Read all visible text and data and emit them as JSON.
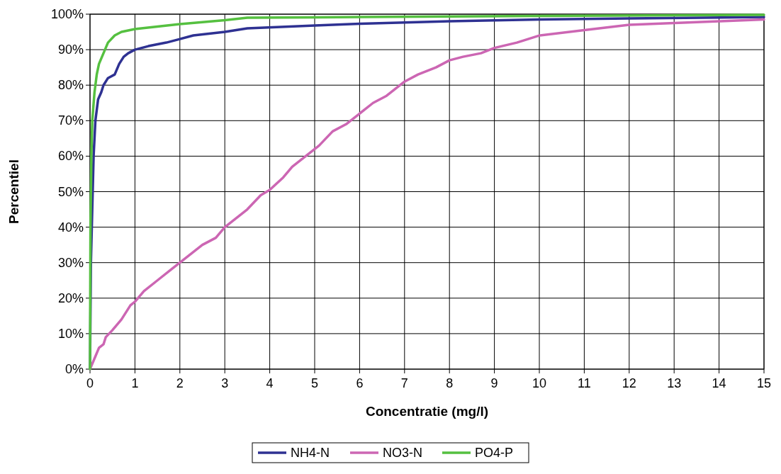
{
  "chart_data": {
    "type": "line",
    "xlabel": "Concentratie (mg/l)",
    "ylabel": "Percentiel",
    "xlim": [
      0,
      15
    ],
    "xticks": [
      0,
      1,
      2,
      3,
      4,
      5,
      6,
      7,
      8,
      9,
      10,
      11,
      12,
      13,
      14,
      15
    ],
    "ylim": [
      0,
      100
    ],
    "yticks": [
      {
        "value": 0,
        "label": "0%"
      },
      {
        "value": 10,
        "label": "10%"
      },
      {
        "value": 20,
        "label": "20%"
      },
      {
        "value": 30,
        "label": "30%"
      },
      {
        "value": 40,
        "label": "40%"
      },
      {
        "value": 50,
        "label": "50%"
      },
      {
        "value": 60,
        "label": "60%"
      },
      {
        "value": 70,
        "label": "70%"
      },
      {
        "value": 80,
        "label": "80%"
      },
      {
        "value": 90,
        "label": "90%"
      },
      {
        "value": 100,
        "label": "100%"
      }
    ],
    "grid": true,
    "legend": "bottom",
    "marker": "none",
    "line_style": "solid",
    "series": [
      {
        "name": "NH4-N",
        "color": "#2e3192",
        "x": [
          0,
          0.02,
          0.05,
          0.08,
          0.12,
          0.18,
          0.25,
          0.3,
          0.4,
          0.55,
          0.65,
          0.75,
          0.85,
          1,
          1.3,
          1.7,
          2,
          2.3,
          3,
          3.5,
          5,
          6,
          8,
          10,
          12,
          15
        ],
        "values": [
          0,
          30,
          45,
          60,
          70,
          76,
          78,
          80,
          82,
          83,
          86,
          88,
          89,
          90,
          91,
          92,
          93,
          94,
          95,
          96,
          96.8,
          97.3,
          98,
          98.5,
          98.8,
          99.2
        ]
      },
      {
        "name": "NO3-N",
        "color": "#cc66b3",
        "x": [
          0,
          0.1,
          0.2,
          0.3,
          0.35,
          0.5,
          0.7,
          0.9,
          1,
          1.2,
          1.5,
          1.8,
          2,
          2.5,
          2.8,
          3,
          3.5,
          3.8,
          4,
          4.3,
          4.5,
          4.8,
          5.1,
          5.4,
          5.7,
          6,
          6.3,
          6.6,
          7,
          7.3,
          7.7,
          8,
          8.3,
          8.7,
          9,
          9.5,
          10,
          11,
          12,
          13,
          14,
          15
        ],
        "values": [
          0,
          3,
          6,
          7,
          9,
          11,
          14,
          18,
          19,
          22,
          25,
          28,
          30,
          35,
          37,
          40,
          45,
          49,
          50.5,
          54,
          57,
          60,
          63,
          67,
          69,
          72,
          75,
          77,
          81,
          83,
          85,
          87,
          88,
          89,
          90.5,
          92,
          94,
          95.5,
          97,
          97.5,
          98,
          98.5
        ]
      },
      {
        "name": "PO4-P",
        "color": "#55c040",
        "x": [
          0,
          0.01,
          0.03,
          0.05,
          0.1,
          0.15,
          0.2,
          0.3,
          0.4,
          0.55,
          0.7,
          1,
          1.5,
          2,
          3,
          3.5,
          5,
          10,
          15
        ],
        "values": [
          0,
          40,
          60,
          70,
          78,
          83,
          86,
          89,
          92,
          94,
          95,
          95.8,
          96.5,
          97.2,
          98.3,
          99,
          99.1,
          99.5,
          99.8
        ]
      }
    ]
  }
}
